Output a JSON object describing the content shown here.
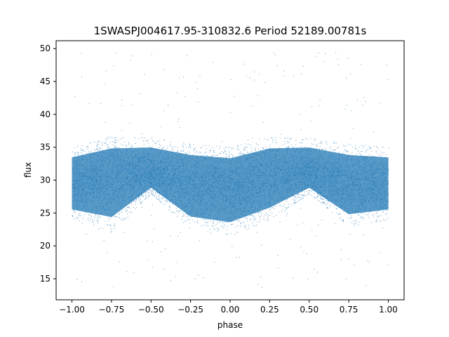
{
  "chart_data": {
    "type": "scatter",
    "title": "1SWASPJ004617.95-310832.6 Period 52189.00781s",
    "xlabel": "phase",
    "ylabel": "flux",
    "xlim": [
      -1.1,
      1.1
    ],
    "ylim": [
      11.8,
      51.2
    ],
    "xticks": [
      -1.0,
      -0.75,
      -0.5,
      -0.25,
      0.0,
      0.25,
      0.5,
      0.75,
      1.0
    ],
    "xtick_labels": [
      "−1.00",
      "−0.75",
      "−0.50",
      "−0.25",
      "0.00",
      "0.25",
      "0.50",
      "0.75",
      "1.00"
    ],
    "yticks": [
      15,
      20,
      25,
      30,
      35,
      40,
      45,
      50
    ],
    "ytick_labels": [
      "15",
      "20",
      "25",
      "30",
      "35",
      "40",
      "45",
      "50"
    ],
    "grid": false,
    "series": [
      {
        "color": "#1f77b4",
        "marker": "point",
        "x_range": [
          -1.0,
          1.0
        ],
        "envelope": {
          "x": [
            -1.0,
            -0.75,
            -0.5,
            -0.25,
            0.0,
            0.25,
            0.5,
            0.75,
            1.0
          ],
          "y_center": [
            29.5,
            30.5,
            31.0,
            29.5,
            29.0,
            30.5,
            31.0,
            29.5,
            29.5
          ],
          "y_low": [
            24.0,
            22.0,
            28.0,
            22.5,
            21.5,
            24.0,
            28.0,
            23.0,
            24.0
          ],
          "y_high": [
            35.0,
            36.5,
            36.5,
            35.5,
            35.0,
            36.5,
            36.5,
            35.5,
            35.0
          ]
        },
        "outlier_range": [
          13.5,
          49.5
        ]
      }
    ]
  }
}
